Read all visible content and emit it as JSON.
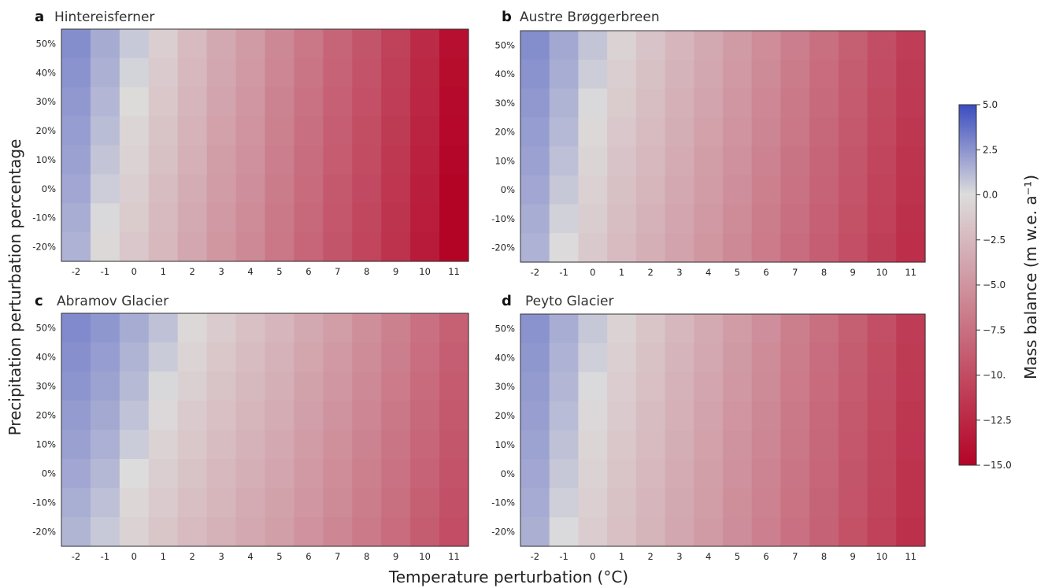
{
  "figure": {
    "xlabel": "Temperature perturbation (°C)",
    "ylabel": "Precipitation perturbation percentage"
  },
  "colorbar": {
    "label": "Mass balance (m w.e. a⁻¹)",
    "range": [
      -15.0,
      5.0
    ],
    "ticks": [
      5.0,
      2.5,
      0.0,
      -2.5,
      -5.0,
      -7.5,
      -10.0,
      -12.5,
      -15.0
    ],
    "tick_labels": [
      "5.0",
      "2.5",
      "0.0",
      "−2.5",
      "−5.0",
      "−7.5",
      "−10.",
      "−12.5",
      "−15.0"
    ],
    "colormap": "coolwarm_r",
    "colors": {
      "low": "#b40426",
      "mid": "#dddcdc",
      "high": "#3b4cc0"
    }
  },
  "chart_data": [
    {
      "type": "heatmap",
      "panel": "a",
      "title": "Hintereisferner",
      "x": [
        "-2",
        "-1",
        "0",
        "1",
        "2",
        "3",
        "4",
        "5",
        "6",
        "7",
        "8",
        "9",
        "10",
        "11"
      ],
      "y": [
        "50%",
        "40%",
        "30%",
        "20%",
        "10%",
        "0%",
        "-10%",
        "-20%"
      ],
      "base_values": [
        1.2,
        0.2,
        -0.6,
        -1.5,
        -2.5,
        -3.6,
        -4.5,
        -5.8,
        -7.0,
        -8.3,
        -9.5,
        -11.0,
        -12.8,
        -15.0
      ],
      "precip_sensitivity": 0.5
    },
    {
      "type": "heatmap",
      "panel": "b",
      "title": "Austre Brøggerbreen",
      "x": [
        "-2",
        "-1",
        "0",
        "1",
        "2",
        "3",
        "4",
        "5",
        "6",
        "7",
        "8",
        "9",
        "10",
        "11"
      ],
      "y": [
        "50%",
        "40%",
        "30%",
        "20%",
        "10%",
        "0%",
        "-10%",
        "-20%"
      ],
      "base_values": [
        1.2,
        0.3,
        -0.5,
        -1.3,
        -2.0,
        -2.8,
        -3.6,
        -4.5,
        -5.5,
        -6.5,
        -7.6,
        -8.7,
        -10.0,
        -11.3
      ],
      "precip_sensitivity": 0.5
    },
    {
      "type": "heatmap",
      "panel": "c",
      "title": "Abramov Glacier",
      "x": [
        "-2",
        "-1",
        "0",
        "1",
        "2",
        "3",
        "4",
        "5",
        "6",
        "7",
        "8",
        "9",
        "10",
        "11"
      ],
      "y": [
        "50%",
        "40%",
        "30%",
        "20%",
        "10%",
        "0%",
        "-10%",
        "-20%"
      ],
      "base_values": [
        1.2,
        0.7,
        0.0,
        -0.6,
        -1.2,
        -1.8,
        -2.4,
        -3.0,
        -3.8,
        -4.6,
        -5.5,
        -6.5,
        -7.6,
        -8.8
      ],
      "precip_sensitivity": 0.6
    },
    {
      "type": "heatmap",
      "panel": "d",
      "title": "Peyto Glacier",
      "x": [
        "-2",
        "-1",
        "0",
        "1",
        "2",
        "3",
        "4",
        "5",
        "6",
        "7",
        "8",
        "9",
        "10",
        "11"
      ],
      "y": [
        "50%",
        "40%",
        "30%",
        "20%",
        "10%",
        "0%",
        "-10%",
        "-20%"
      ],
      "base_values": [
        1.2,
        0.3,
        -0.4,
        -1.1,
        -1.8,
        -2.6,
        -3.4,
        -4.3,
        -5.2,
        -6.3,
        -7.4,
        -8.6,
        -9.8,
        -11.2
      ],
      "precip_sensitivity": 0.4
    }
  ]
}
